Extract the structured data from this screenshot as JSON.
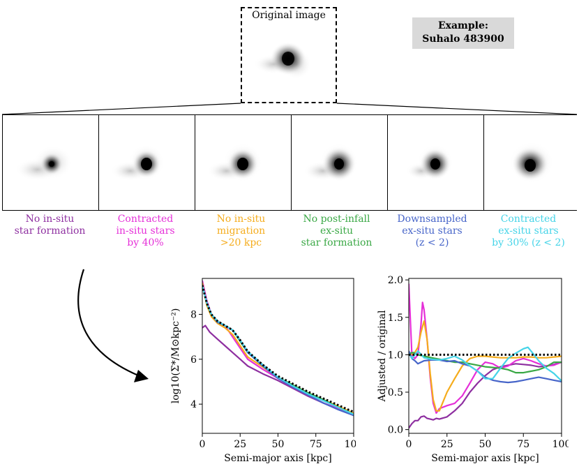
{
  "original": {
    "title": "Original image"
  },
  "example": {
    "line1": "Example:",
    "line2": "Suhalo 483900"
  },
  "panels": [
    {
      "label": "No in-situ\nstar formation",
      "color": "#8e2fa0"
    },
    {
      "label": "Contracted\nin-situ stars\nby 40%",
      "color": "#e52fd8"
    },
    {
      "label": "No in-situ\nmigration\n>20 kpc",
      "color": "#f5ac1c"
    },
    {
      "label": "No post-infall\nex-situ\nstar formation",
      "color": "#3aa845"
    },
    {
      "label": "Downsampled\nex-situ stars\n(z < 2)",
      "color": "#4765c9"
    },
    {
      "label": "Contracted\nex-situ stars\nby 30% (z < 2)",
      "color": "#45d4e8"
    }
  ],
  "chart_data": [
    {
      "type": "line",
      "xlabel": "Semi-major axis [kpc]",
      "ylabel": "log10(Σ*/M⊙kpc⁻²)",
      "xlim": [
        0,
        100
      ],
      "ylim": [
        2.7,
        9.6
      ],
      "xticks": [
        0,
        25,
        50,
        75,
        100
      ],
      "yticks": [
        4,
        6,
        8
      ],
      "series": [
        {
          "color": "#8e2fa0",
          "x": [
            0,
            2,
            5,
            10,
            15,
            20,
            25,
            30,
            40,
            50,
            60,
            70,
            80,
            90,
            100
          ],
          "y": [
            7.4,
            7.5,
            7.2,
            6.9,
            6.6,
            6.3,
            6.0,
            5.7,
            5.35,
            5.05,
            4.7,
            4.35,
            4.05,
            3.8,
            3.5
          ]
        },
        {
          "color": "#e52fd8",
          "x": [
            0,
            3,
            6,
            10,
            15,
            18,
            22,
            26,
            30,
            40,
            50,
            60,
            70,
            80,
            90,
            100
          ],
          "y": [
            9.5,
            8.6,
            8.0,
            7.7,
            7.5,
            7.2,
            6.8,
            6.4,
            6.0,
            5.55,
            5.15,
            4.75,
            4.4,
            4.05,
            3.8,
            3.55
          ]
        },
        {
          "color": "#f5ac1c",
          "x": [
            0,
            3,
            6,
            10,
            15,
            20,
            25,
            30,
            40,
            50,
            60,
            70,
            80,
            90,
            100
          ],
          "y": [
            9.4,
            8.4,
            7.9,
            7.6,
            7.4,
            7.1,
            6.6,
            6.1,
            5.65,
            5.2,
            4.85,
            4.5,
            4.2,
            3.9,
            3.6
          ]
        },
        {
          "color": "#3aa845",
          "x": [
            0,
            3,
            6,
            10,
            15,
            20,
            25,
            30,
            40,
            50,
            60,
            70,
            80,
            90,
            100
          ],
          "y": [
            9.3,
            8.5,
            8.0,
            7.7,
            7.5,
            7.3,
            6.8,
            6.3,
            5.75,
            5.2,
            4.85,
            4.5,
            4.2,
            3.85,
            3.55
          ]
        },
        {
          "color": "#4765c9",
          "x": [
            0,
            3,
            6,
            10,
            15,
            20,
            25,
            30,
            40,
            50,
            60,
            70,
            80,
            90,
            100
          ],
          "y": [
            9.3,
            8.5,
            8.0,
            7.65,
            7.5,
            7.3,
            6.85,
            6.3,
            5.7,
            5.15,
            4.75,
            4.4,
            4.05,
            3.75,
            3.5
          ]
        },
        {
          "color": "#45d4e8",
          "x": [
            0,
            3,
            6,
            10,
            15,
            20,
            25,
            30,
            40,
            50,
            60,
            70,
            80,
            90,
            100
          ],
          "y": [
            9.3,
            8.5,
            8.0,
            7.7,
            7.5,
            7.3,
            6.85,
            6.35,
            5.75,
            5.2,
            4.8,
            4.45,
            4.15,
            3.85,
            3.55
          ]
        },
        {
          "color": "#000000",
          "style": "dotted",
          "x": [
            0,
            3,
            6,
            10,
            15,
            20,
            25,
            30,
            40,
            50,
            60,
            70,
            80,
            90,
            100
          ],
          "y": [
            9.3,
            8.5,
            8.0,
            7.7,
            7.5,
            7.3,
            6.85,
            6.35,
            5.75,
            5.25,
            4.9,
            4.55,
            4.25,
            3.95,
            3.65
          ]
        }
      ]
    },
    {
      "type": "line",
      "xlabel": "Semi-major axis [kpc]",
      "ylabel": "Adjusted / original",
      "xlim": [
        0,
        100
      ],
      "ylim": [
        -0.05,
        2.02
      ],
      "xticks": [
        0,
        25,
        50,
        75,
        100
      ],
      "yticks": [
        0.0,
        0.5,
        1.0,
        1.5,
        2.0
      ],
      "series": [
        {
          "color": "#8e2fa0",
          "x": [
            0,
            2,
            4,
            6,
            8,
            10,
            12,
            14,
            16,
            18,
            20,
            25,
            30,
            35,
            40,
            45,
            50,
            55,
            60,
            65,
            70,
            75,
            80,
            85,
            90,
            95,
            100
          ],
          "y": [
            0.02,
            0.08,
            0.12,
            0.12,
            0.17,
            0.18,
            0.15,
            0.14,
            0.13,
            0.15,
            0.14,
            0.17,
            0.25,
            0.35,
            0.5,
            0.62,
            0.72,
            0.8,
            0.84,
            0.86,
            0.88,
            0.87,
            0.86,
            0.84,
            0.85,
            0.87,
            0.9
          ]
        },
        {
          "color": "#e52fd8",
          "x": [
            0,
            2,
            4,
            6,
            8,
            9,
            10,
            12,
            14,
            16,
            18,
            20,
            25,
            30,
            35,
            40,
            45,
            50,
            55,
            60,
            65,
            70,
            75,
            80,
            85,
            90,
            95,
            100
          ],
          "y": [
            1.95,
            1.0,
            0.95,
            1.0,
            1.4,
            1.7,
            1.6,
            1.2,
            0.7,
            0.35,
            0.22,
            0.28,
            0.32,
            0.35,
            0.45,
            0.62,
            0.8,
            0.9,
            0.88,
            0.82,
            0.85,
            0.92,
            0.95,
            0.92,
            0.88,
            0.85,
            0.86,
            0.9
          ]
        },
        {
          "color": "#f5ac1c",
          "x": [
            0,
            3,
            6,
            8,
            10,
            12,
            14,
            16,
            18,
            20,
            22,
            25,
            30,
            35,
            40,
            45,
            50,
            55,
            60,
            65,
            70,
            75,
            80,
            85,
            90,
            95,
            100
          ],
          "y": [
            1.02,
            1.0,
            1.1,
            1.3,
            1.45,
            1.2,
            0.75,
            0.4,
            0.25,
            0.25,
            0.35,
            0.5,
            0.68,
            0.85,
            0.95,
            0.98,
            0.98,
            0.97,
            0.96,
            0.96,
            0.96,
            0.97,
            0.97,
            0.96,
            0.96,
            0.97,
            0.98
          ]
        },
        {
          "color": "#3aa845",
          "x": [
            0,
            3,
            6,
            10,
            15,
            20,
            25,
            30,
            35,
            40,
            45,
            50,
            55,
            60,
            65,
            70,
            75,
            80,
            85,
            90,
            95,
            100
          ],
          "y": [
            1.02,
            1.03,
            1.0,
            0.98,
            0.96,
            0.94,
            0.92,
            0.9,
            0.9,
            0.88,
            0.86,
            0.84,
            0.83,
            0.82,
            0.8,
            0.76,
            0.76,
            0.78,
            0.8,
            0.84,
            0.9,
            0.9
          ]
        },
        {
          "color": "#4765c9",
          "x": [
            0,
            2,
            4,
            6,
            10,
            15,
            20,
            25,
            30,
            35,
            40,
            45,
            50,
            55,
            60,
            65,
            70,
            75,
            80,
            85,
            90,
            95,
            100
          ],
          "y": [
            1.05,
            0.95,
            0.92,
            0.88,
            0.92,
            0.93,
            0.93,
            0.91,
            0.92,
            0.88,
            0.85,
            0.78,
            0.7,
            0.66,
            0.64,
            0.63,
            0.64,
            0.66,
            0.68,
            0.7,
            0.68,
            0.66,
            0.64
          ]
        },
        {
          "color": "#45d4e8",
          "x": [
            0,
            2,
            4,
            6,
            10,
            15,
            20,
            25,
            30,
            35,
            40,
            45,
            50,
            55,
            60,
            65,
            70,
            75,
            78,
            82,
            85,
            90,
            95,
            100
          ],
          "y": [
            1.02,
            0.95,
            1.0,
            1.05,
            0.96,
            0.94,
            0.93,
            0.95,
            0.98,
            0.93,
            0.85,
            0.78,
            0.68,
            0.68,
            0.82,
            0.95,
            1.02,
            1.08,
            1.1,
            1.0,
            0.92,
            0.82,
            0.75,
            0.65
          ]
        },
        {
          "color": "#000000",
          "style": "dotted",
          "x": [
            0,
            100
          ],
          "y": [
            1.0,
            1.0
          ]
        }
      ]
    }
  ]
}
